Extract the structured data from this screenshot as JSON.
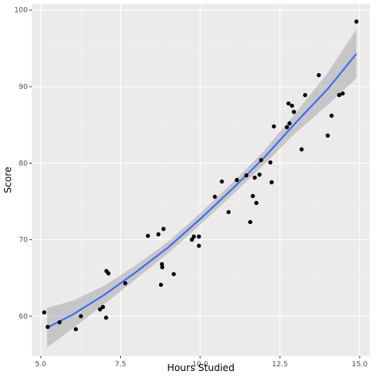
{
  "chart_data": {
    "type": "scatter",
    "title": "",
    "xlabel": "Hours Studied",
    "ylabel": "Score",
    "xlim": [
      4.72,
      15.32
    ],
    "ylim": [
      54.8,
      100.8
    ],
    "x_ticks": [
      5.0,
      7.5,
      10.0,
      12.5,
      15.0
    ],
    "x_tick_labels": [
      "5.0",
      "7.5",
      "10.0",
      "12.5",
      "15.0"
    ],
    "y_ticks": [
      60,
      70,
      80,
      90,
      100
    ],
    "y_tick_labels": [
      "60",
      "70",
      "80",
      "90",
      "100"
    ],
    "grid": true,
    "legend": "none",
    "points": [
      [
        5.11,
        60.5
      ],
      [
        5.22,
        58.6
      ],
      [
        5.59,
        59.2
      ],
      [
        6.1,
        58.3
      ],
      [
        6.26,
        60.0
      ],
      [
        6.86,
        60.9
      ],
      [
        6.95,
        61.2
      ],
      [
        7.05,
        59.8
      ],
      [
        7.06,
        65.9
      ],
      [
        7.12,
        65.6
      ],
      [
        7.65,
        64.3
      ],
      [
        8.36,
        70.5
      ],
      [
        8.69,
        70.7
      ],
      [
        8.77,
        64.1
      ],
      [
        8.8,
        66.8
      ],
      [
        8.81,
        66.4
      ],
      [
        8.85,
        71.4
      ],
      [
        9.17,
        65.5
      ],
      [
        9.74,
        70.0
      ],
      [
        9.8,
        70.4
      ],
      [
        9.96,
        70.4
      ],
      [
        9.96,
        69.2
      ],
      [
        10.46,
        75.6
      ],
      [
        10.68,
        77.6
      ],
      [
        10.89,
        73.6
      ],
      [
        11.15,
        77.8
      ],
      [
        11.45,
        78.4
      ],
      [
        11.57,
        72.3
      ],
      [
        11.65,
        75.7
      ],
      [
        11.71,
        78.1
      ],
      [
        11.76,
        74.8
      ],
      [
        11.86,
        78.5
      ],
      [
        11.91,
        80.4
      ],
      [
        12.2,
        80.1
      ],
      [
        12.24,
        77.5
      ],
      [
        12.31,
        84.8
      ],
      [
        12.72,
        84.7
      ],
      [
        12.77,
        87.8
      ],
      [
        12.8,
        85.2
      ],
      [
        12.88,
        87.5
      ],
      [
        12.94,
        86.7
      ],
      [
        13.18,
        81.8
      ],
      [
        13.29,
        88.9
      ],
      [
        13.72,
        91.5
      ],
      [
        14.0,
        83.6
      ],
      [
        14.12,
        86.2
      ],
      [
        14.36,
        88.9
      ],
      [
        14.47,
        89.1
      ],
      [
        14.9,
        98.5
      ]
    ],
    "fit": {
      "method": "quadratic",
      "curve": [
        [
          5.2,
          58.5
        ],
        [
          6.0,
          60.2
        ],
        [
          7.0,
          62.8
        ],
        [
          8.0,
          65.8
        ],
        [
          9.0,
          69.0
        ],
        [
          10.0,
          72.7
        ],
        [
          11.0,
          76.6
        ],
        [
          12.0,
          80.7
        ],
        [
          13.0,
          85.3
        ],
        [
          14.0,
          89.7
        ],
        [
          14.9,
          94.3
        ]
      ],
      "band_halfwidth": [
        [
          5.2,
          2.6
        ],
        [
          6.0,
          1.8
        ],
        [
          7.0,
          1.2
        ],
        [
          8.0,
          0.9
        ],
        [
          9.0,
          0.75
        ],
        [
          10.0,
          0.75
        ],
        [
          11.0,
          0.8
        ],
        [
          12.0,
          0.9
        ],
        [
          13.0,
          1.3
        ],
        [
          14.0,
          2.1
        ],
        [
          14.9,
          3.2
        ]
      ]
    },
    "colors": {
      "panel_background": "#ebebeb",
      "grid_major": "#ffffff",
      "point": "#000000",
      "fit_line": "#3366ff",
      "band": "#999999",
      "tick_label": "#4d4d4d",
      "axis_title": "#000000"
    }
  }
}
